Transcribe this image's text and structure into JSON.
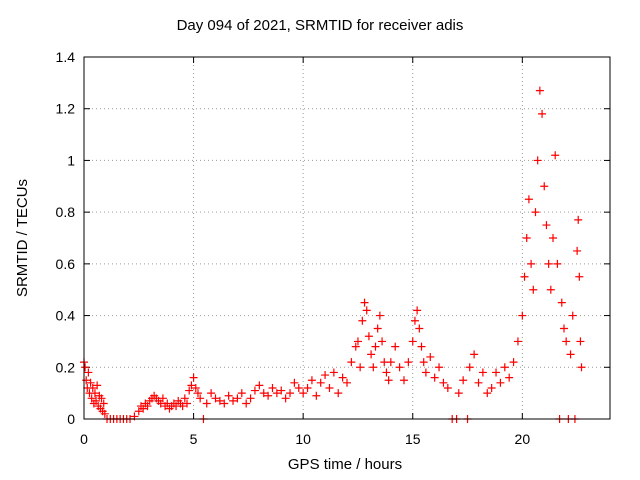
{
  "chart_data": {
    "type": "scatter",
    "title": "Day 094 of 2021, SRMTID for receiver adis",
    "xlabel": "GPS time / hours",
    "ylabel": "SRMTID / TECUs",
    "xlim": [
      0,
      24
    ],
    "ylim": [
      0,
      1.4
    ],
    "xticks": [
      0,
      5,
      10,
      15,
      20
    ],
    "yticks": [
      0,
      0.2,
      0.4,
      0.6,
      0.8,
      1,
      1.2,
      1.4
    ],
    "ytick_labels": [
      "0",
      "0.2",
      "0.4",
      "0.6",
      "0.8",
      "1",
      "1.2",
      "1.4"
    ],
    "grid": true,
    "marker": "plus",
    "color": "#ff0000",
    "series": [
      {
        "name": "SRMTID",
        "points": [
          [
            0.0,
            0.22
          ],
          [
            0.05,
            0.2
          ],
          [
            0.1,
            0.15
          ],
          [
            0.15,
            0.12
          ],
          [
            0.2,
            0.18
          ],
          [
            0.25,
            0.1
          ],
          [
            0.3,
            0.14
          ],
          [
            0.35,
            0.08
          ],
          [
            0.4,
            0.12
          ],
          [
            0.45,
            0.06
          ],
          [
            0.5,
            0.1
          ],
          [
            0.55,
            0.07
          ],
          [
            0.6,
            0.13
          ],
          [
            0.65,
            0.05
          ],
          [
            0.7,
            0.09
          ],
          [
            0.75,
            0.04
          ],
          [
            0.8,
            0.08
          ],
          [
            0.85,
            0.03
          ],
          [
            0.9,
            0.06
          ],
          [
            0.95,
            0.02
          ],
          [
            1.05,
            0.0
          ],
          [
            1.2,
            0.0
          ],
          [
            1.35,
            0.0
          ],
          [
            1.5,
            0.0
          ],
          [
            1.65,
            0.0
          ],
          [
            1.8,
            0.0
          ],
          [
            1.95,
            0.0
          ],
          [
            2.1,
            0.0
          ],
          [
            2.3,
            0.01
          ],
          [
            2.5,
            0.03
          ],
          [
            2.6,
            0.05
          ],
          [
            2.7,
            0.04
          ],
          [
            2.8,
            0.06
          ],
          [
            2.9,
            0.05
          ],
          [
            3.0,
            0.07
          ],
          [
            3.1,
            0.08
          ],
          [
            3.2,
            0.09
          ],
          [
            3.3,
            0.08
          ],
          [
            3.4,
            0.07
          ],
          [
            3.5,
            0.06
          ],
          [
            3.6,
            0.08
          ],
          [
            3.7,
            0.05
          ],
          [
            3.8,
            0.06
          ],
          [
            3.9,
            0.04
          ],
          [
            4.0,
            0.05
          ],
          [
            4.1,
            0.06
          ],
          [
            4.2,
            0.05
          ],
          [
            4.3,
            0.07
          ],
          [
            4.4,
            0.06
          ],
          [
            4.5,
            0.05
          ],
          [
            4.6,
            0.08
          ],
          [
            4.7,
            0.06
          ],
          [
            4.8,
            0.11
          ],
          [
            4.9,
            0.13
          ],
          [
            5.0,
            0.16
          ],
          [
            5.1,
            0.12
          ],
          [
            5.2,
            0.1
          ],
          [
            5.3,
            0.08
          ],
          [
            5.45,
            0.0
          ],
          [
            5.6,
            0.06
          ],
          [
            5.8,
            0.1
          ],
          [
            6.0,
            0.08
          ],
          [
            6.2,
            0.07
          ],
          [
            6.4,
            0.06
          ],
          [
            6.6,
            0.09
          ],
          [
            6.8,
            0.07
          ],
          [
            7.0,
            0.08
          ],
          [
            7.2,
            0.1
          ],
          [
            7.4,
            0.06
          ],
          [
            7.6,
            0.08
          ],
          [
            7.8,
            0.11
          ],
          [
            8.0,
            0.13
          ],
          [
            8.2,
            0.1
          ],
          [
            8.4,
            0.09
          ],
          [
            8.6,
            0.12
          ],
          [
            8.8,
            0.1
          ],
          [
            9.0,
            0.11
          ],
          [
            9.2,
            0.08
          ],
          [
            9.4,
            0.1
          ],
          [
            9.6,
            0.14
          ],
          [
            9.8,
            0.12
          ],
          [
            10.0,
            0.1
          ],
          [
            10.2,
            0.12
          ],
          [
            10.4,
            0.15
          ],
          [
            10.6,
            0.09
          ],
          [
            10.8,
            0.14
          ],
          [
            11.0,
            0.17
          ],
          [
            11.2,
            0.12
          ],
          [
            11.4,
            0.18
          ],
          [
            11.6,
            0.1
          ],
          [
            11.8,
            0.16
          ],
          [
            12.0,
            0.14
          ],
          [
            12.2,
            0.22
          ],
          [
            12.4,
            0.28
          ],
          [
            12.5,
            0.3
          ],
          [
            12.6,
            0.2
          ],
          [
            12.7,
            0.38
          ],
          [
            12.8,
            0.45
          ],
          [
            12.9,
            0.42
          ],
          [
            13.0,
            0.32
          ],
          [
            13.1,
            0.25
          ],
          [
            13.2,
            0.2
          ],
          [
            13.3,
            0.28
          ],
          [
            13.4,
            0.35
          ],
          [
            13.5,
            0.4
          ],
          [
            13.6,
            0.3
          ],
          [
            13.7,
            0.22
          ],
          [
            13.8,
            0.18
          ],
          [
            13.9,
            0.15
          ],
          [
            14.0,
            0.22
          ],
          [
            14.2,
            0.28
          ],
          [
            14.4,
            0.2
          ],
          [
            14.6,
            0.15
          ],
          [
            14.8,
            0.22
          ],
          [
            15.0,
            0.3
          ],
          [
            15.1,
            0.38
          ],
          [
            15.2,
            0.42
          ],
          [
            15.3,
            0.35
          ],
          [
            15.4,
            0.28
          ],
          [
            15.5,
            0.22
          ],
          [
            15.6,
            0.18
          ],
          [
            15.8,
            0.24
          ],
          [
            16.0,
            0.16
          ],
          [
            16.2,
            0.2
          ],
          [
            16.4,
            0.14
          ],
          [
            16.6,
            0.12
          ],
          [
            16.8,
            0.0
          ],
          [
            17.0,
            0.0
          ],
          [
            17.1,
            0.1
          ],
          [
            17.3,
            0.15
          ],
          [
            17.5,
            0.0
          ],
          [
            17.6,
            0.2
          ],
          [
            17.8,
            0.25
          ],
          [
            18.0,
            0.14
          ],
          [
            18.2,
            0.18
          ],
          [
            18.4,
            0.1
          ],
          [
            18.6,
            0.12
          ],
          [
            18.8,
            0.18
          ],
          [
            19.0,
            0.14
          ],
          [
            19.2,
            0.2
          ],
          [
            19.4,
            0.16
          ],
          [
            19.6,
            0.22
          ],
          [
            19.8,
            0.3
          ],
          [
            20.0,
            0.4
          ],
          [
            20.1,
            0.55
          ],
          [
            20.2,
            0.7
          ],
          [
            20.3,
            0.85
          ],
          [
            20.4,
            0.6
          ],
          [
            20.5,
            0.5
          ],
          [
            20.6,
            0.8
          ],
          [
            20.7,
            1.0
          ],
          [
            20.8,
            1.27
          ],
          [
            20.9,
            1.18
          ],
          [
            21.0,
            0.9
          ],
          [
            21.1,
            0.75
          ],
          [
            21.2,
            0.6
          ],
          [
            21.3,
            0.5
          ],
          [
            21.4,
            0.7
          ],
          [
            21.5,
            1.02
          ],
          [
            21.6,
            0.6
          ],
          [
            21.7,
            0.0
          ],
          [
            21.8,
            0.45
          ],
          [
            21.9,
            0.35
          ],
          [
            22.0,
            0.3
          ],
          [
            22.1,
            0.0
          ],
          [
            22.2,
            0.25
          ],
          [
            22.3,
            0.4
          ],
          [
            22.4,
            0.0
          ],
          [
            22.5,
            0.65
          ],
          [
            22.55,
            0.77
          ],
          [
            22.6,
            0.55
          ],
          [
            22.65,
            0.3
          ],
          [
            22.7,
            0.2
          ]
        ]
      }
    ]
  }
}
